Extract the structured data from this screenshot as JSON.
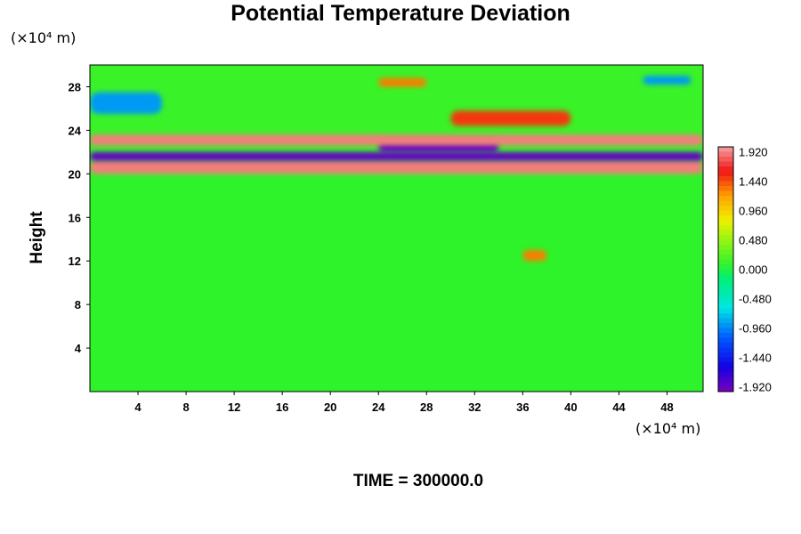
{
  "chart_data": {
    "type": "heatmap",
    "title": "Potential Temperature Deviation",
    "ylabel": "Height",
    "x_unit_label": "(×10⁴ m)",
    "y_unit_label": "(×10⁴ m)",
    "time_label": "TIME = 300000.0",
    "xlim": [
      0,
      51
    ],
    "ylim": [
      0,
      30
    ],
    "x_ticks": [
      4,
      8,
      12,
      16,
      20,
      24,
      28,
      32,
      36,
      40,
      44,
      48
    ],
    "y_ticks": [
      4,
      8,
      12,
      16,
      20,
      24,
      28
    ],
    "colorbar": {
      "range": [
        -2.0,
        2.0
      ],
      "tick_values": [
        1.92,
        1.44,
        0.96,
        0.48,
        0.0,
        -0.48,
        -0.96,
        -1.44,
        -1.92
      ],
      "tick_labels": [
        "1.920",
        "1.440",
        "0.960",
        "0.480",
        "0.000",
        "-0.480",
        "-0.960",
        "-1.440",
        "-1.920"
      ]
    },
    "features": [
      {
        "x": [
          0,
          51
        ],
        "y": [
          20,
          21.2
        ],
        "value": 1.9
      },
      {
        "x": [
          0,
          51
        ],
        "y": [
          21.2,
          22.0
        ],
        "value": -1.9
      },
      {
        "x": [
          24,
          34
        ],
        "y": [
          22.0,
          23.0
        ],
        "value": -1.9
      },
      {
        "x": [
          0,
          51
        ],
        "y": [
          22.6,
          23.6
        ],
        "value": 1.9
      },
      {
        "x": [
          30,
          40
        ],
        "y": [
          24.4,
          25.8
        ],
        "value": 1.5
      },
      {
        "x": [
          24,
          28
        ],
        "y": [
          28.0,
          28.8
        ],
        "value": 1.3
      },
      {
        "x": [
          46,
          50
        ],
        "y": [
          28.2,
          29.0
        ],
        "value": -0.9
      },
      {
        "x": [
          36,
          38
        ],
        "y": [
          12.0,
          13.0
        ],
        "value": 1.3
      },
      {
        "x": [
          0,
          6
        ],
        "y": [
          25.5,
          27.5
        ],
        "value": -0.9
      }
    ]
  },
  "colors": {
    "background_field": "#2ef22a",
    "low": "#7a00b8",
    "high": "#f4a0a0"
  }
}
